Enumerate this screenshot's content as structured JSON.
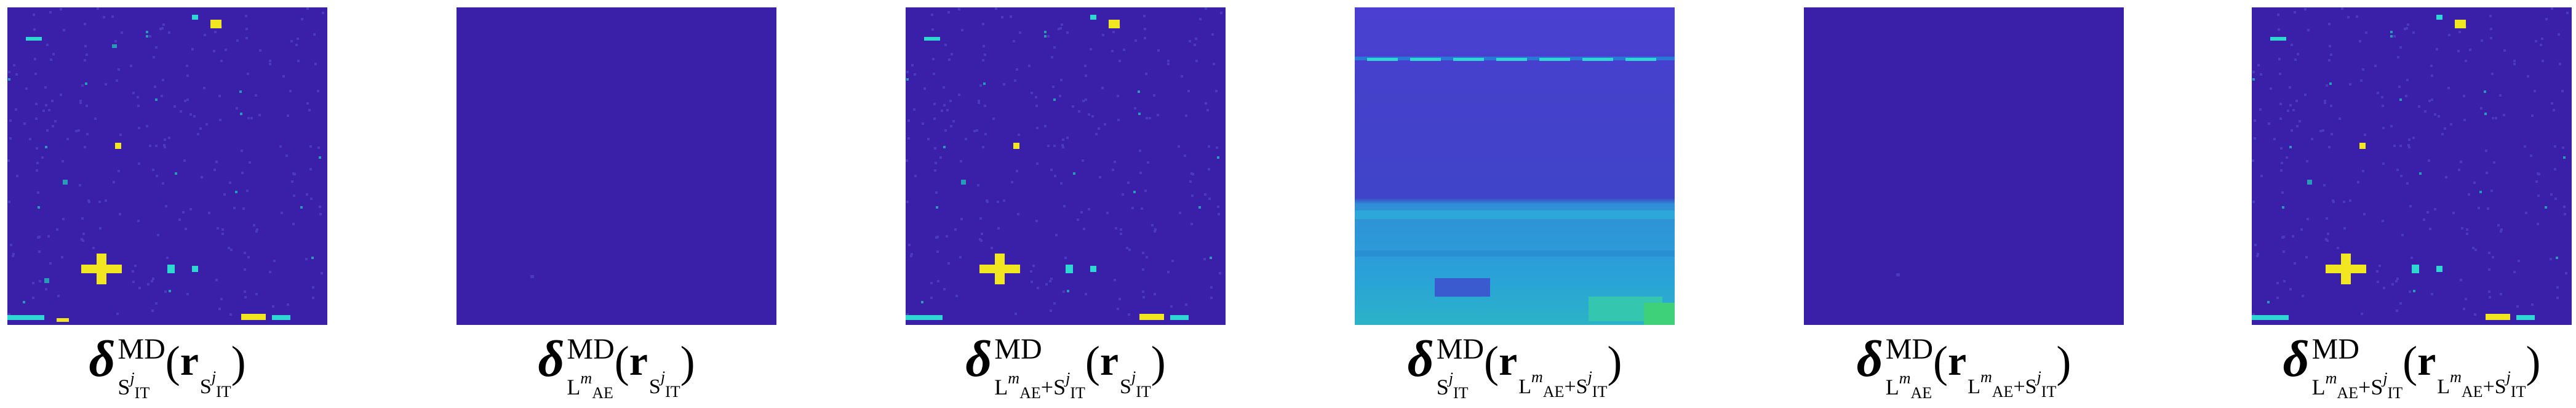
{
  "colors": {
    "background": "#3a1fa8",
    "noise_light": "#4a3bbd",
    "cyan": "#2fd7d2",
    "teal": "#2a9bb7",
    "yellow": "#f2e621",
    "green": "#3fd07a"
  },
  "panels": [
    {
      "id": "p1",
      "map_style": "sparse-detections",
      "caption": {
        "delta_sub": "S^j_IT",
        "arg_sub": "S^j_IT"
      }
    },
    {
      "id": "p2",
      "map_style": "near-empty",
      "caption": {
        "delta_sub": "L^m_AE",
        "arg_sub": "S^j_IT"
      }
    },
    {
      "id": "p3",
      "map_style": "sparse-detections",
      "caption": {
        "delta_sub": "L^m_AE+S^j_IT",
        "arg_sub": "S^j_IT"
      }
    },
    {
      "id": "p4",
      "map_style": "dense-background",
      "caption": {
        "delta_sub": "S^j_IT",
        "arg_sub": "L^m_AE+S^j_IT"
      }
    },
    {
      "id": "p5",
      "map_style": "near-empty",
      "caption": {
        "delta_sub": "L^m_AE",
        "arg_sub": "L^m_AE+S^j_IT"
      }
    },
    {
      "id": "p6",
      "map_style": "sparse-detections",
      "caption": {
        "delta_sub": "L^m_AE+S^j_IT",
        "arg_sub": "L^m_AE+S^j_IT"
      }
    }
  ],
  "labels": {
    "delta": "δ",
    "md": "MD",
    "r": "r",
    "open": "(",
    "close": ")",
    "S": "S",
    "L": "L",
    "IT": "IT",
    "AE": "AE",
    "j": "j",
    "m": "m",
    "plus": "+"
  }
}
